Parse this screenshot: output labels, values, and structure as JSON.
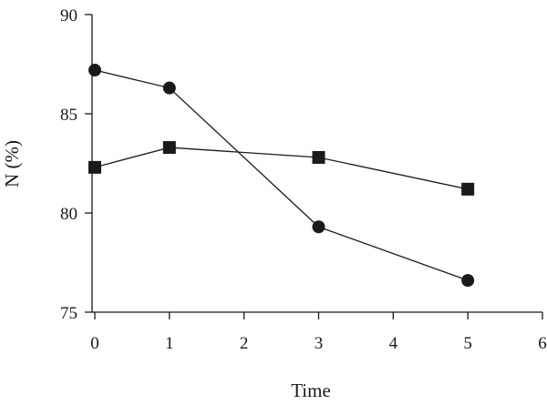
{
  "chart_data": {
    "type": "line",
    "xlabel": "Time",
    "ylabel": "N (%)",
    "xlim": [
      0,
      6
    ],
    "ylim": [
      75,
      90
    ],
    "x_ticks": [
      0,
      1,
      2,
      3,
      4,
      5,
      6
    ],
    "y_ticks": [
      75,
      80,
      85,
      90
    ],
    "grid": false,
    "legend": false,
    "series": [
      {
        "marker": "circle",
        "points": [
          {
            "x": 0,
            "y": 87.2
          },
          {
            "x": 1,
            "y": 86.3
          },
          {
            "x": 3,
            "y": 79.3
          },
          {
            "x": 5,
            "y": 76.6
          }
        ]
      },
      {
        "marker": "square",
        "points": [
          {
            "x": 0,
            "y": 82.3
          },
          {
            "x": 1,
            "y": 83.3
          },
          {
            "x": 3,
            "y": 82.8
          },
          {
            "x": 5,
            "y": 81.2
          }
        ]
      }
    ],
    "colors": {
      "ink": "#1a1a1a"
    }
  }
}
